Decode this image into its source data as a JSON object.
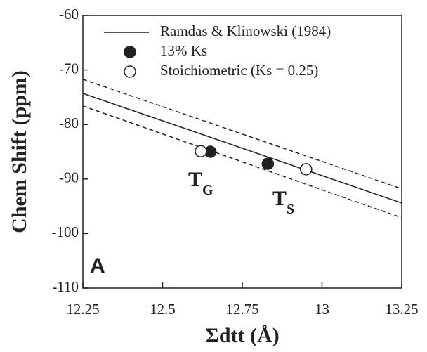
{
  "chart_data": {
    "type": "scatter",
    "x_label": "Σdtt (Å)",
    "y_label": "Chem Shift (ppm)",
    "xlim": [
      12.25,
      13.25
    ],
    "xticks": [
      12.25,
      12.5,
      12.75,
      13,
      13.25
    ],
    "ylim": [
      -110,
      -60
    ],
    "yticks": [
      -60,
      -70,
      -80,
      -90,
      -100,
      -110
    ],
    "series": [
      {
        "name": "Ramdas & Klinowski (1984)",
        "kind": "line",
        "style": "solid",
        "color": "#222",
        "x": [
          12.25,
          13.25
        ],
        "values": [
          -74.3,
          -94.4
        ]
      },
      {
        "kind": "line",
        "style": "dashed",
        "color": "#222",
        "x": [
          12.25,
          13.25
        ],
        "values": [
          -71.7,
          -91.8
        ]
      },
      {
        "kind": "line",
        "style": "dashed",
        "color": "#222",
        "x": [
          12.25,
          13.25
        ],
        "values": [
          -76.6,
          -97.1
        ]
      },
      {
        "name": "13% Ks",
        "kind": "points",
        "marker": "filled",
        "color": "#222",
        "x": [
          12.65,
          12.83
        ],
        "values": [
          -85.0,
          -87.2
        ]
      },
      {
        "name": "Stoichiometric (Ks = 0.25)",
        "kind": "points",
        "marker": "open",
        "color": "#222",
        "x": [
          12.62,
          12.95
        ],
        "values": [
          -84.9,
          -88.2
        ]
      }
    ],
    "annotations": [
      {
        "text": "T",
        "sub": "G"
      },
      {
        "text": "T",
        "sub": "S"
      },
      {
        "text": "A"
      }
    ]
  }
}
